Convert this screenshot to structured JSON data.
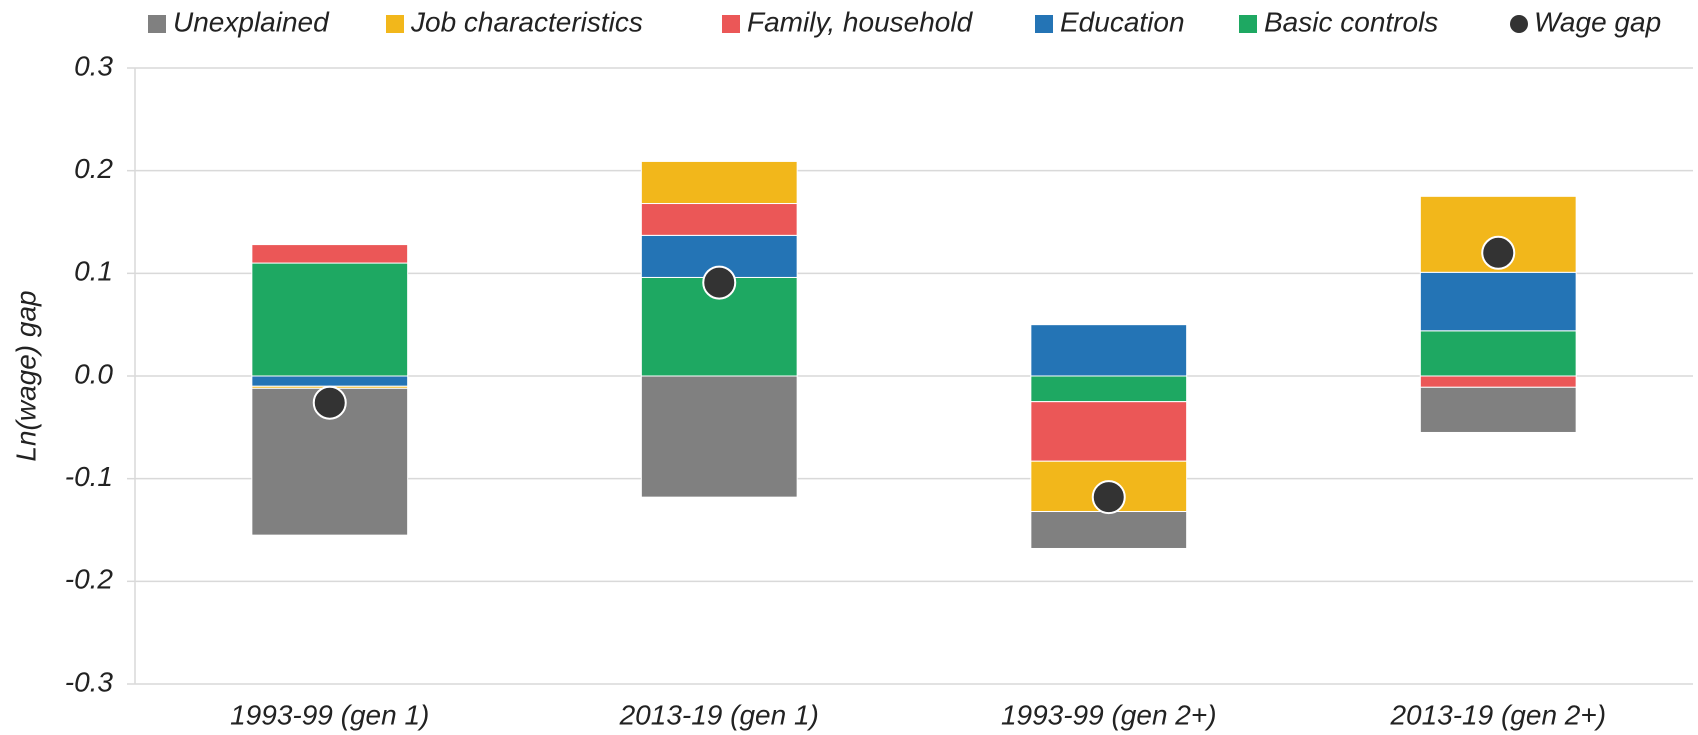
{
  "chart_data": {
    "type": "bar",
    "stacked": true,
    "y_label": "Ln(wage) gap",
    "categories": [
      "1993-99 (gen 1)",
      "2013-19 (gen 1)",
      "1993-99 (gen 2+)",
      "2013-19 (gen 2+)"
    ],
    "series": [
      {
        "name": "Unexplained",
        "color": "#808080",
        "values": [
          -0.143,
          -0.118,
          -0.036,
          -0.044
        ]
      },
      {
        "name": "Job characteristics",
        "color": "#f2b71b",
        "values": [
          -0.002,
          0.041,
          -0.049,
          0.074
        ]
      },
      {
        "name": "Family, household",
        "color": "#eb5757",
        "values": [
          0.018,
          0.031,
          -0.058,
          -0.011
        ]
      },
      {
        "name": "Education",
        "color": "#2474b5",
        "values": [
          -0.01,
          0.041,
          0.05,
          0.057
        ]
      },
      {
        "name": "Basic controls",
        "color": "#1ea862",
        "values": [
          0.11,
          0.096,
          -0.025,
          0.044
        ]
      },
      {
        "name": "Wage gap",
        "color": "#333333",
        "kind": "dot",
        "values": [
          -0.026,
          0.091,
          -0.118,
          0.12
        ]
      }
    ],
    "ylim": [
      -0.3,
      0.3
    ],
    "yticks": [
      -0.3,
      -0.2,
      -0.1,
      {
        "value": 0,
        "label": "0.0"
      },
      0.1,
      0.2,
      0.3
    ],
    "grid": true
  }
}
